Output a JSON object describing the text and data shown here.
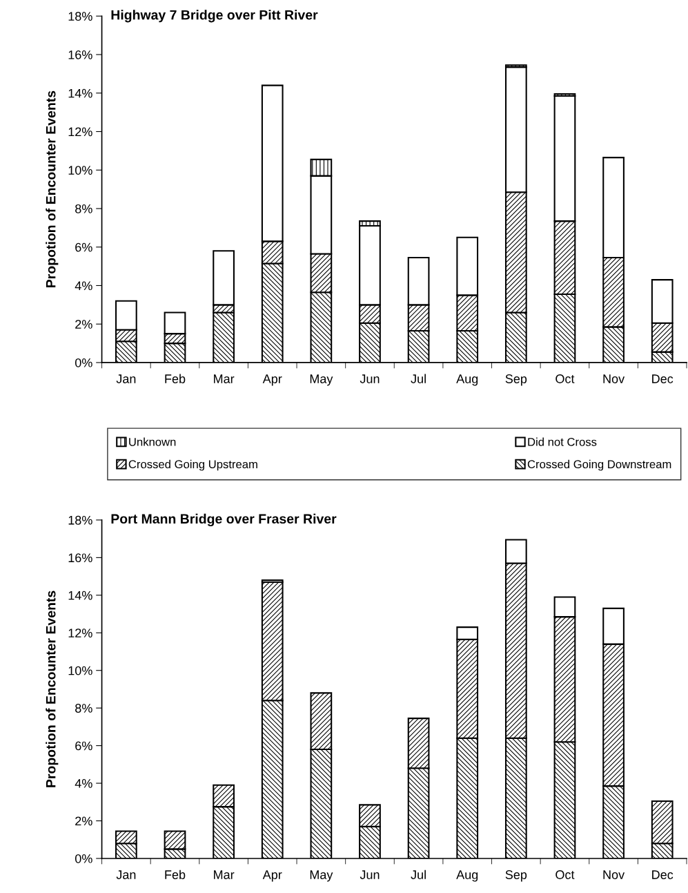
{
  "chart_data": [
    {
      "type": "bar",
      "title": "Highway 7 Bridge over Pitt River",
      "ylabel": "Propotion of Encounter Events",
      "stacked": true,
      "legend": "bottom",
      "categories": [
        "Jan",
        "Feb",
        "Mar",
        "Apr",
        "May",
        "Jun",
        "Jul",
        "Aug",
        "Sep",
        "Oct",
        "Nov",
        "Dec"
      ],
      "ylim": [
        0,
        18
      ],
      "yticks": [
        {
          "value": 0,
          "label": "0%"
        },
        {
          "value": 2,
          "label": "2%"
        },
        {
          "value": 4,
          "label": "4%"
        },
        {
          "value": 6,
          "label": "6%"
        },
        {
          "value": 8,
          "label": "8%"
        },
        {
          "value": 10,
          "label": "10%"
        },
        {
          "value": 12,
          "label": "12%"
        },
        {
          "value": 14,
          "label": "14%"
        },
        {
          "value": 16,
          "label": "16%"
        },
        {
          "value": 18,
          "label": "18%"
        }
      ],
      "series": [
        {
          "name": "Crossed Going Downstream",
          "color": "#000000",
          "values": [
            1.1,
            1.0,
            2.6,
            5.15,
            3.65,
            2.05,
            1.65,
            1.65,
            2.6,
            3.55,
            1.85,
            0.55
          ]
        },
        {
          "name": "Crossed Going Upstream",
          "color": "#000000",
          "values": [
            0.6,
            0.5,
            0.4,
            1.15,
            2.0,
            0.95,
            1.35,
            1.85,
            6.25,
            3.8,
            3.6,
            1.5
          ]
        },
        {
          "name": "Did not Cross",
          "color": "#ffffff",
          "values": [
            1.5,
            1.1,
            2.8,
            8.1,
            4.05,
            4.1,
            2.45,
            3.0,
            6.5,
            6.5,
            5.2,
            2.25
          ]
        },
        {
          "name": "Unknown",
          "color": "#000000",
          "values": [
            null,
            null,
            null,
            null,
            0.85,
            0.25,
            null,
            null,
            0.1,
            0.1,
            null,
            null
          ]
        }
      ]
    },
    {
      "type": "bar",
      "title": "Port Mann Bridge over Fraser River",
      "ylabel": "Propotion of Encounter Events",
      "stacked": true,
      "categories": [
        "Jan",
        "Feb",
        "Mar",
        "Apr",
        "May",
        "Jun",
        "Jul",
        "Aug",
        "Sep",
        "Oct",
        "Nov",
        "Dec"
      ],
      "ylim": [
        0,
        18
      ],
      "yticks": [
        {
          "value": 0,
          "label": "0%"
        },
        {
          "value": 2,
          "label": "2%"
        },
        {
          "value": 4,
          "label": "4%"
        },
        {
          "value": 6,
          "label": "6%"
        },
        {
          "value": 8,
          "label": "8%"
        },
        {
          "value": 10,
          "label": "10%"
        },
        {
          "value": 12,
          "label": "12%"
        },
        {
          "value": 14,
          "label": "14%"
        },
        {
          "value": 16,
          "label": "16%"
        },
        {
          "value": 18,
          "label": "18%"
        }
      ],
      "series": [
        {
          "color": "#000000",
          "values": [
            0.8,
            0.5,
            2.75,
            8.4,
            5.8,
            1.7,
            4.8,
            6.4,
            6.4,
            6.2,
            3.85,
            0.8
          ]
        },
        {
          "color": "#000000",
          "values": [
            0.65,
            0.95,
            1.15,
            6.3,
            3.0,
            1.15,
            2.65,
            5.25,
            9.3,
            6.65,
            7.55,
            2.25
          ]
        },
        {
          "color": "#ffffff",
          "values": [
            null,
            null,
            null,
            0.1,
            null,
            null,
            null,
            0.65,
            1.25,
            1.05,
            1.9,
            null
          ]
        }
      ]
    }
  ]
}
